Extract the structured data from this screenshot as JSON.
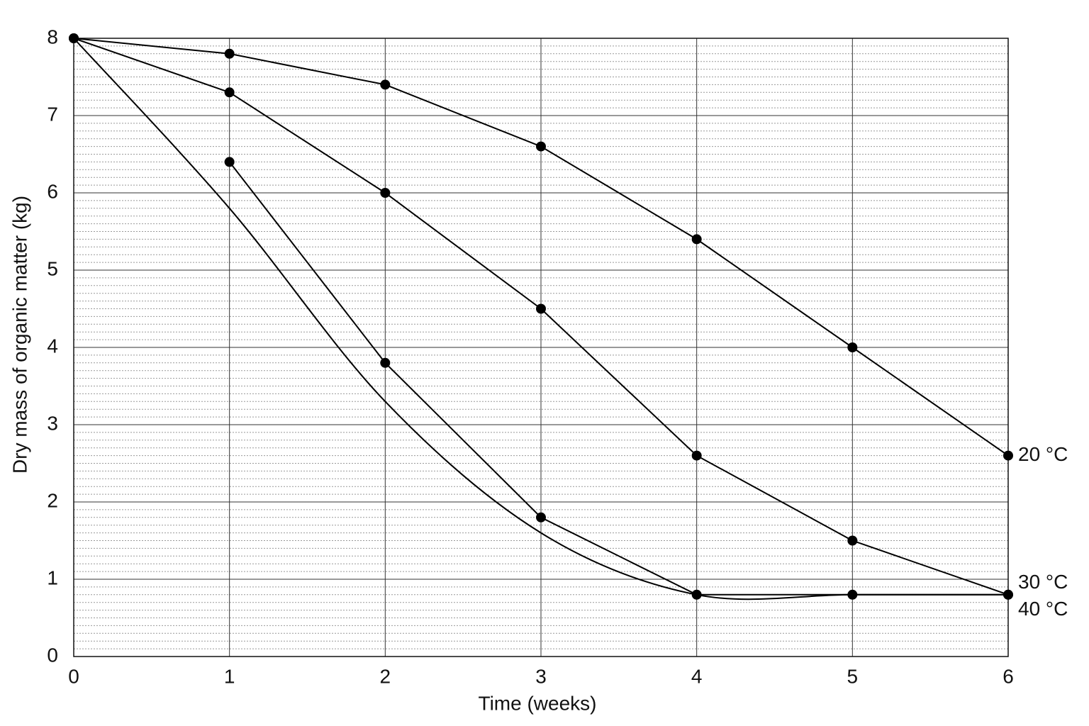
{
  "chart_data": {
    "type": "line",
    "x_label": "Time (weeks)",
    "y_label": "Dry mass of organic matter (kg)",
    "x": [
      0,
      1,
      2,
      3,
      4,
      5,
      6
    ],
    "series": [
      {
        "name": "20 °C",
        "color": "#000000",
        "markers": true,
        "values": [
          8,
          7.8,
          7.4,
          6.6,
          5.4,
          4.0,
          2.6
        ]
      },
      {
        "name": "30 °C",
        "color": "#000000",
        "markers": true,
        "values": [
          8,
          7.3,
          6.0,
          4.5,
          2.6,
          1.5,
          0.8
        ]
      },
      {
        "name": "40 °C",
        "color": "#000000",
        "markers": true,
        "values": [
          null,
          6.4,
          3.8,
          1.8,
          0.8,
          0.8,
          0.8
        ]
      },
      {
        "color": "#000000",
        "markers": false,
        "smooth": true,
        "values": [
          8,
          5.8,
          3.3,
          1.6,
          0.8,
          0.8,
          0.8
        ]
      }
    ],
    "xlim": [
      0,
      6
    ],
    "ylim": [
      0,
      8
    ],
    "xticks": [
      0,
      1,
      2,
      3,
      4,
      5,
      6
    ],
    "yticks": [
      0,
      1,
      2,
      3,
      4,
      5,
      6,
      7,
      8
    ],
    "grid": true,
    "minor_grid": true
  }
}
